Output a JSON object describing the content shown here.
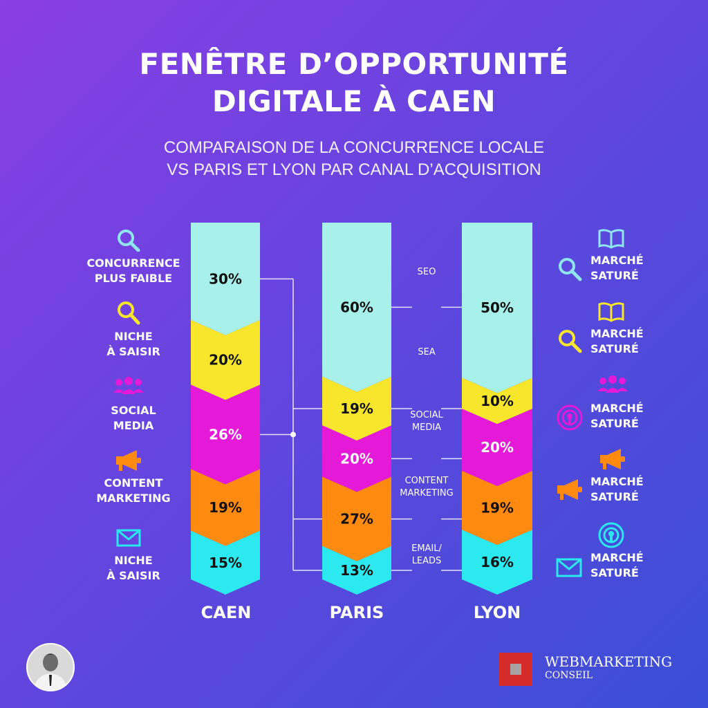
{
  "header": {
    "title_lines": [
      "FENÊTRE D’OPPORTUNITÉ",
      "DIGITALE À CAEN"
    ],
    "subtitle_lines": [
      "COMPARAISON DE LA CONCURRENCE LOCALE",
      "VS PARIS ET LYON PAR CANAL D’ACQUISITION"
    ]
  },
  "chart_data": {
    "type": "bar",
    "orientation": "stacked-vertical",
    "categories": [
      "CAEN",
      "PARIS",
      "LYON"
    ],
    "channels": [
      {
        "name": "SEO",
        "label_lines": [
          "SEO"
        ],
        "color": "#a7f1ea",
        "values": [
          30,
          60,
          50
        ]
      },
      {
        "name": "SEA",
        "label_lines": [
          "SEA"
        ],
        "color": "#f7e62c",
        "values": [
          20,
          19,
          10
        ]
      },
      {
        "name": "SOCIAL MEDIA",
        "label_lines": [
          "SOCIAL",
          "MEDIA"
        ],
        "color": "#e51ad9",
        "values": [
          26,
          20,
          20
        ]
      },
      {
        "name": "CONTENT MARKETING",
        "label_lines": [
          "CONTENT",
          "MARKETING"
        ],
        "color": "#ff8a10",
        "values": [
          19,
          27,
          19
        ]
      },
      {
        "name": "EMAIL/ LEADS",
        "label_lines": [
          "EMAIL/",
          "LEADS"
        ],
        "color": "#2ce9ef",
        "values": [
          15,
          13,
          16
        ]
      }
    ],
    "value_labels": [
      [
        "30%",
        "60%",
        "50%"
      ],
      [
        "20%",
        "19%",
        "10%"
      ],
      [
        "26%",
        "20%",
        "20%"
      ],
      [
        "19%",
        "27%",
        "19%"
      ],
      [
        "15%",
        "13%",
        "16%"
      ]
    ]
  },
  "left_annotations": [
    {
      "lines": [
        "CONCURRENCE",
        "PLUS FAIBLE"
      ],
      "icon": "search-icon",
      "color": "#8fe6f0"
    },
    {
      "lines": [
        "NICHE",
        "À SAISIR"
      ],
      "icon": "search-icon",
      "color": "#f7e62c"
    },
    {
      "lines": [
        "SOCIAL",
        "MEDIA"
      ],
      "icon": "people-icon",
      "color": "#e51ad9"
    },
    {
      "lines": [
        "CONTENT",
        "MARKETING"
      ],
      "icon": "megaphone-icon",
      "color": "#ff8a10"
    },
    {
      "lines": [
        "NICHE",
        "À SAISIR"
      ],
      "icon": "envelope-icon",
      "color": "#2ce9ef"
    }
  ],
  "right_annotations": [
    {
      "lines": [
        "MARCHÉ",
        "SATURÉ"
      ],
      "icons": [
        "book-icon",
        "search-icon"
      ],
      "color": "#8fe6f0"
    },
    {
      "lines": [
        "MARCHÉ",
        "SATURÉ"
      ],
      "icons": [
        "book-icon",
        "search-icon"
      ],
      "color": "#f7e62c"
    },
    {
      "lines": [
        "MARCHÉ",
        "SATURÉ"
      ],
      "icons": [
        "people-icon",
        "broadcast-icon"
      ],
      "color": "#e51ad9"
    },
    {
      "lines": [
        "MARCHÉ",
        "SATURÉ"
      ],
      "icons": [
        "megaphone-icon",
        "megaphone-icon"
      ],
      "color": "#ff8a10"
    },
    {
      "lines": [
        "MARCHÉ",
        "SATURÉ"
      ],
      "icons": [
        "broadcast-icon",
        "envelope-icon"
      ],
      "color": "#2ce9ef"
    }
  ],
  "footer": {
    "brand_name": "WEBMARKETING",
    "brand_sub": "CONSEIL",
    "brand_color": "#d42b2b"
  }
}
